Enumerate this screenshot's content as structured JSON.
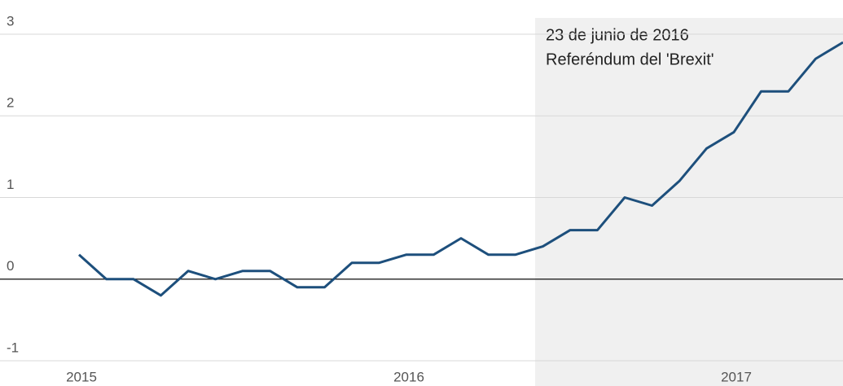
{
  "chart_data": {
    "type": "line",
    "annotation": [
      "23 de junio de 2016",
      "Referéndum del 'Brexit'"
    ],
    "categories": [
      "2015",
      null,
      null,
      null,
      null,
      null,
      null,
      null,
      null,
      null,
      null,
      null,
      "2016",
      null,
      null,
      null,
      null,
      null,
      null,
      null,
      null,
      null,
      null,
      null,
      "2017",
      null,
      null,
      null,
      null
    ],
    "series": [
      {
        "name": null,
        "color": "#1d4f7c",
        "values": [
          0.3,
          0.0,
          0.0,
          -0.2,
          0.1,
          0.0,
          0.1,
          0.1,
          -0.1,
          -0.1,
          0.2,
          0.2,
          0.3,
          0.3,
          0.5,
          0.3,
          0.3,
          0.4,
          0.6,
          0.6,
          1.0,
          0.9,
          1.2,
          1.6,
          1.8,
          2.3,
          2.3,
          2.7,
          2.9
        ]
      }
    ],
    "ylim": [
      -1,
      3
    ],
    "yticks": [
      -1,
      0,
      1,
      2,
      3
    ],
    "grid": true
  }
}
